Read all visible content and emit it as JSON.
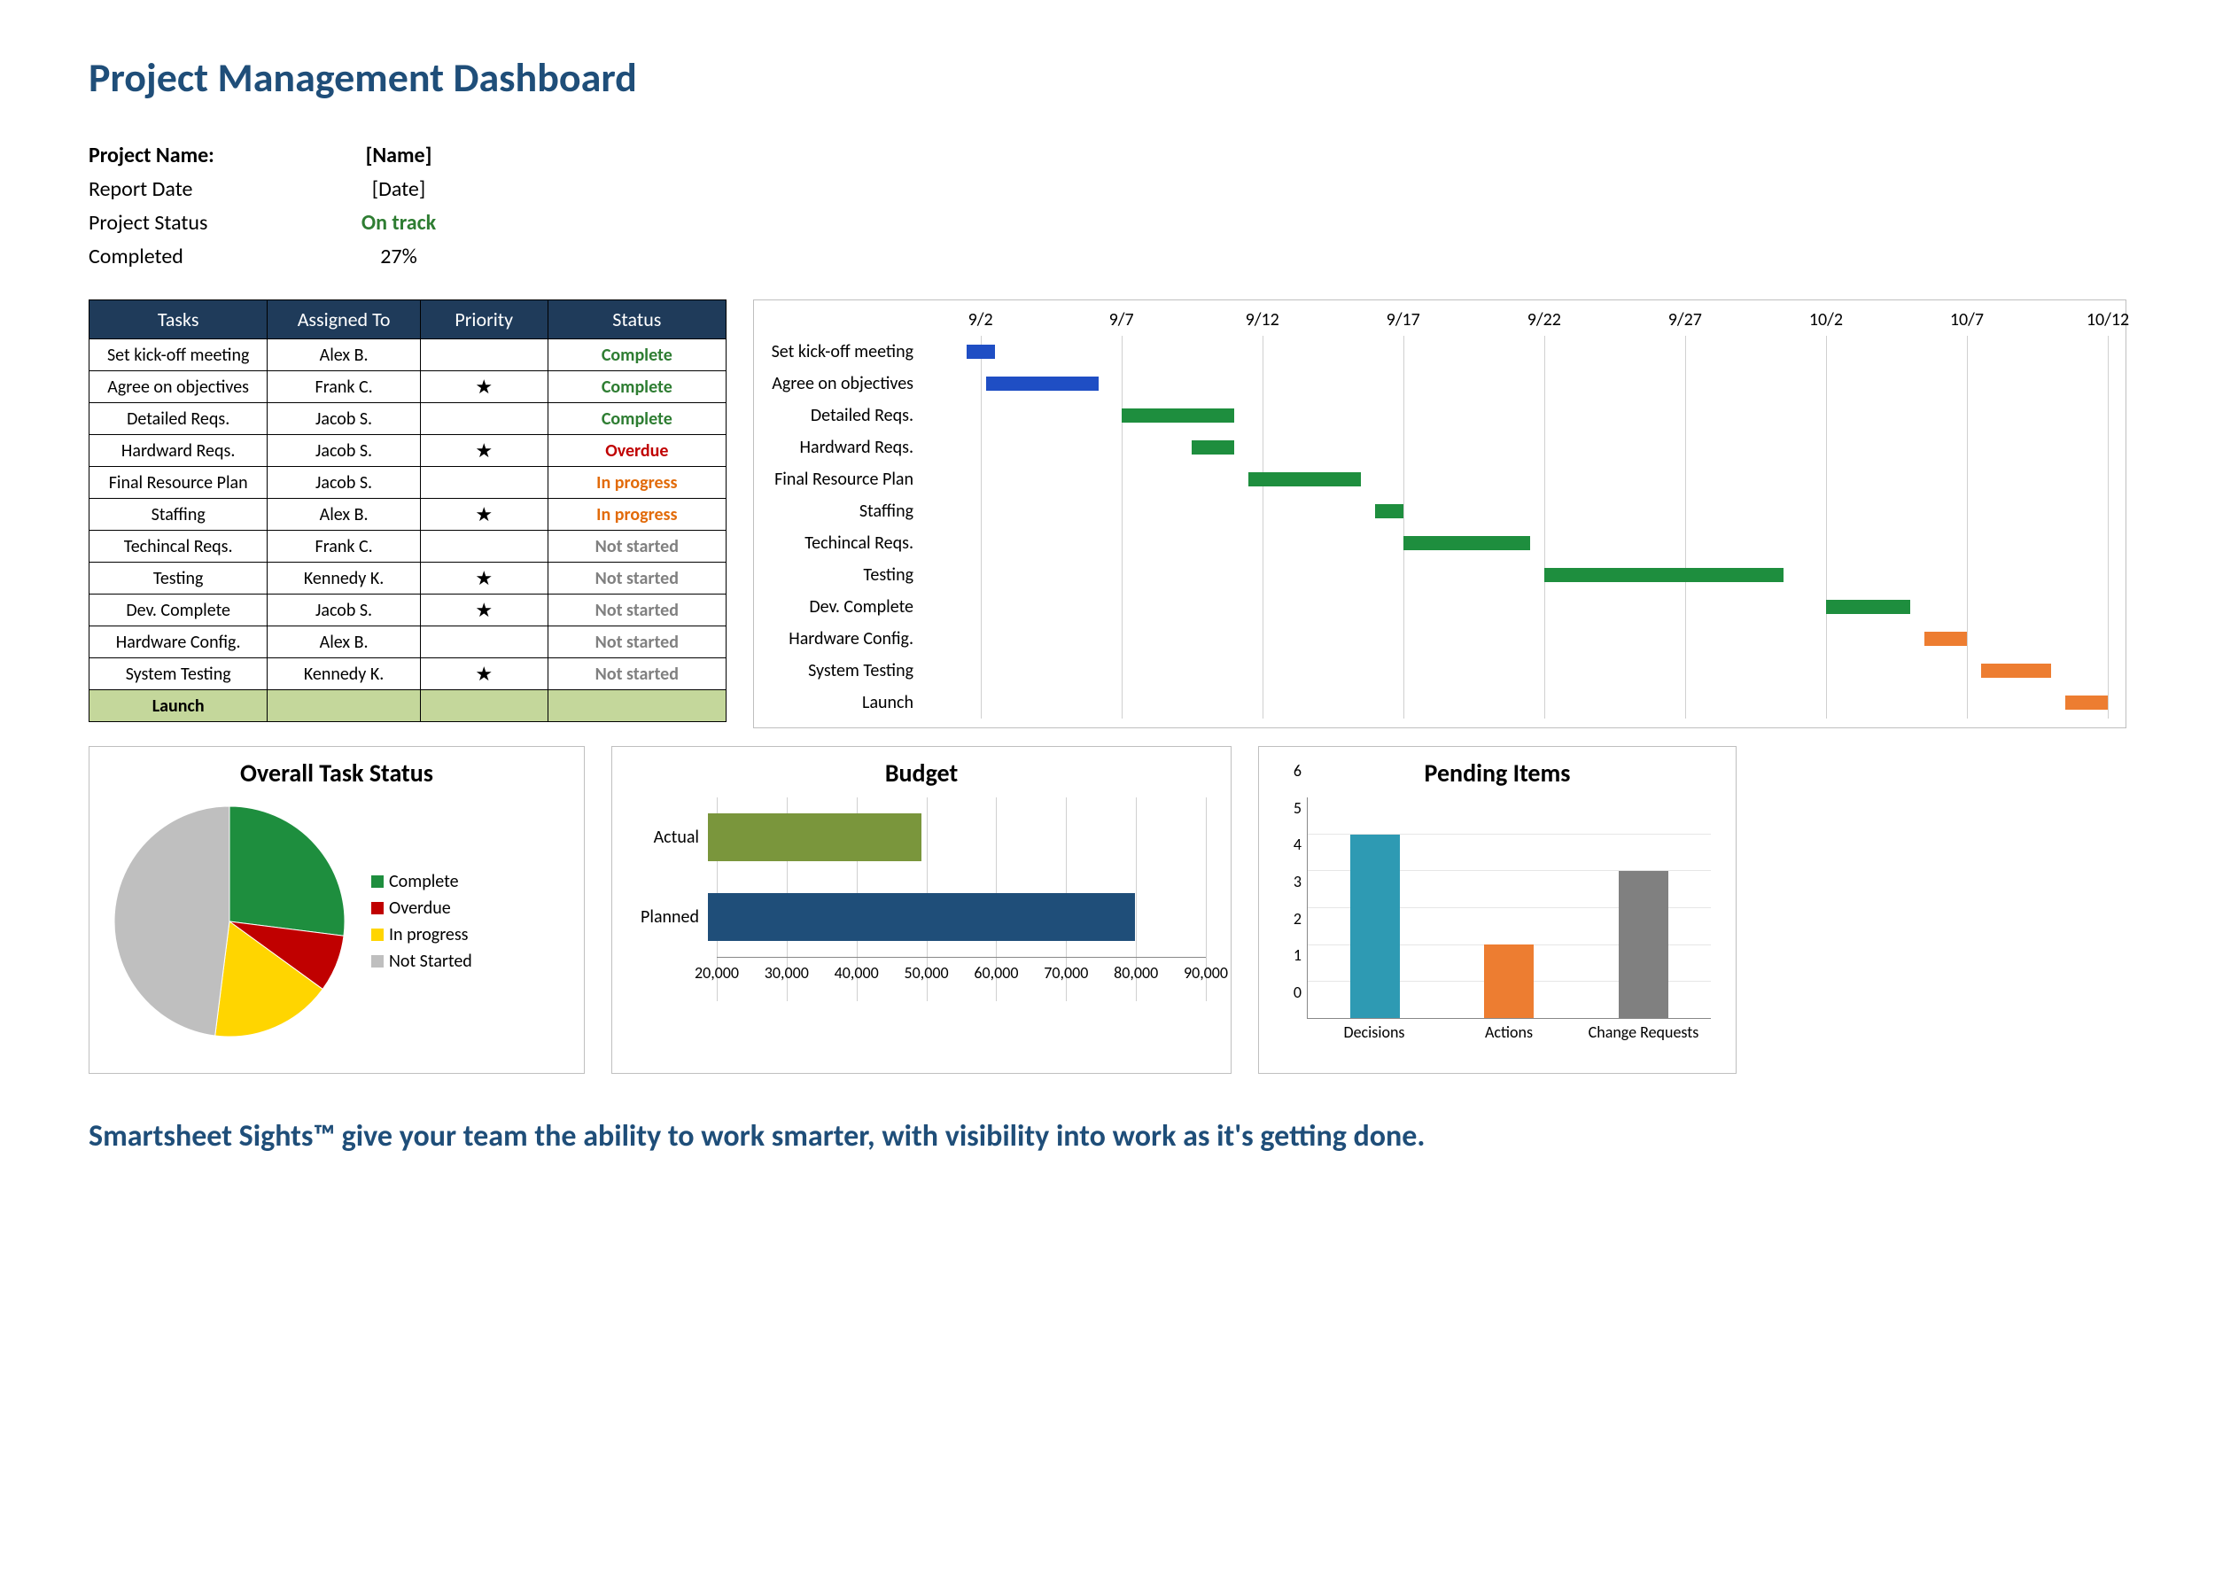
{
  "title": "Project Management Dashboard",
  "meta": {
    "rows": [
      {
        "label": "Project Name:",
        "value": "[Name]",
        "bold": true
      },
      {
        "label": "Report Date",
        "value": "[Date]"
      },
      {
        "label": "Project Status",
        "value": "On track",
        "color": "#2e7d32",
        "bold_value": true
      },
      {
        "label": "Completed",
        "value": "27%"
      }
    ]
  },
  "colors": {
    "header_bg": "#1f3b5a",
    "header_fg": "#ffffff",
    "border": "#000000",
    "launch_bg": "#c4d79b",
    "grid": "#d0d0d0"
  },
  "status_colors": {
    "Complete": "#2e7d32",
    "Overdue": "#c00000",
    "In progress": "#e26b0a",
    "Not started": "#808080"
  },
  "task_table": {
    "columns": [
      "Tasks",
      "Assigned To",
      "Priority",
      "Status"
    ],
    "rows": [
      {
        "task": "Set kick-off meeting",
        "assignee": "Alex B.",
        "priority": false,
        "status": "Complete"
      },
      {
        "task": "Agree on objectives",
        "assignee": "Frank C.",
        "priority": true,
        "status": "Complete"
      },
      {
        "task": "Detailed Reqs.",
        "assignee": "Jacob S.",
        "priority": false,
        "status": "Complete"
      },
      {
        "task": "Hardward Reqs.",
        "assignee": "Jacob S.",
        "priority": true,
        "status": "Overdue"
      },
      {
        "task": "Final Resource Plan",
        "assignee": "Jacob S.",
        "priority": false,
        "status": "In progress"
      },
      {
        "task": "Staffing",
        "assignee": "Alex B.",
        "priority": true,
        "status": "In progress"
      },
      {
        "task": "Techincal Reqs.",
        "assignee": "Frank C.",
        "priority": false,
        "status": "Not started"
      },
      {
        "task": "Testing",
        "assignee": "Kennedy K.",
        "priority": true,
        "status": "Not started"
      },
      {
        "task": "Dev. Complete",
        "assignee": "Jacob S.",
        "priority": true,
        "status": "Not started"
      },
      {
        "task": "Hardware Config.",
        "assignee": "Alex B.",
        "priority": false,
        "status": "Not started"
      },
      {
        "task": "System Testing",
        "assignee": "Kennedy K.",
        "priority": true,
        "status": "Not started"
      },
      {
        "task": "Launch",
        "assignee": "",
        "priority": false,
        "status": "",
        "launch": true
      }
    ]
  },
  "gantt": {
    "date_min": 0,
    "date_max": 42,
    "ticks": [
      {
        "pos": 2,
        "label": "9/2"
      },
      {
        "pos": 7,
        "label": "9/7"
      },
      {
        "pos": 12,
        "label": "9/12"
      },
      {
        "pos": 17,
        "label": "9/17"
      },
      {
        "pos": 22,
        "label": "9/22"
      },
      {
        "pos": 27,
        "label": "9/27"
      },
      {
        "pos": 32,
        "label": "10/2"
      },
      {
        "pos": 37,
        "label": "10/7"
      },
      {
        "pos": 42,
        "label": "10/12"
      }
    ],
    "colors": {
      "blue": "#1f4ec4",
      "green": "#1e8e3e",
      "orange": "#ed7d31"
    },
    "rows": [
      {
        "label": "Set kick-off meeting",
        "start": 1.5,
        "end": 2.5,
        "color": "blue"
      },
      {
        "label": "Agree on objectives",
        "start": 2.2,
        "end": 6.2,
        "color": "blue"
      },
      {
        "label": "Detailed Reqs.",
        "start": 7.0,
        "end": 11.0,
        "color": "green"
      },
      {
        "label": "Hardward Reqs.",
        "start": 9.5,
        "end": 11.0,
        "color": "green"
      },
      {
        "label": "Final Resource Plan",
        "start": 11.5,
        "end": 15.5,
        "color": "green"
      },
      {
        "label": "Staffing",
        "start": 16.0,
        "end": 17.0,
        "color": "green"
      },
      {
        "label": "Techincal Reqs.",
        "start": 17.0,
        "end": 21.5,
        "color": "green"
      },
      {
        "label": "Testing",
        "start": 22.0,
        "end": 30.5,
        "color": "green"
      },
      {
        "label": "Dev. Complete",
        "start": 32.0,
        "end": 35.0,
        "color": "green"
      },
      {
        "label": "Hardware Config.",
        "start": 35.5,
        "end": 37.0,
        "color": "orange"
      },
      {
        "label": "System Testing",
        "start": 37.5,
        "end": 40.0,
        "color": "orange"
      },
      {
        "label": "Launch",
        "start": 40.5,
        "end": 42.0,
        "color": "orange"
      }
    ]
  },
  "pie": {
    "title": "Overall Task Status",
    "diameter": 260,
    "slices": [
      {
        "label": "Complete",
        "value": 27,
        "color": "#1e8e3e"
      },
      {
        "label": "Overdue",
        "value": 8,
        "color": "#c00000"
      },
      {
        "label": "In progress",
        "value": 17,
        "color": "#ffd500"
      },
      {
        "label": "Not Started",
        "value": 48,
        "color": "#bfbfbf"
      }
    ]
  },
  "budget": {
    "title": "Budget",
    "xmin": 20000,
    "xmax": 90000,
    "xtick_step": 10000,
    "bars": [
      {
        "label": "Actual",
        "value": 50000,
        "color": "#7a963c"
      },
      {
        "label": "Planned",
        "value": 80000,
        "color": "#1f4e79"
      }
    ]
  },
  "pending": {
    "title": "Pending Items",
    "ymin": 0,
    "ymax": 6,
    "ytick_step": 1,
    "bars": [
      {
        "label": "Decisions",
        "value": 5,
        "color": "#2e9ab3"
      },
      {
        "label": "Actions",
        "value": 2,
        "color": "#ed7d31"
      },
      {
        "label": "Change Requests",
        "value": 4,
        "color": "#808080"
      }
    ]
  },
  "footer": "Smartsheet Sights™ give your team the ability to work smarter, with visibility into work as it's getting done."
}
